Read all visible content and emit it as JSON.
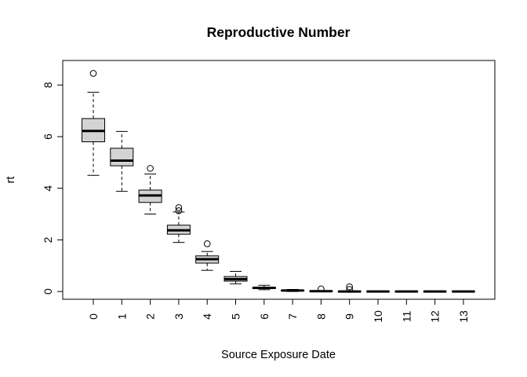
{
  "chart_data": {
    "type": "boxplot",
    "title": "Reproductive Number",
    "xlabel": "Source Exposure Date",
    "ylabel": "rt",
    "categories": [
      "0",
      "1",
      "2",
      "3",
      "4",
      "5",
      "6",
      "7",
      "8",
      "9",
      "10",
      "11",
      "12",
      "13"
    ],
    "ylim": [
      -0.3,
      8.95
    ],
    "y_ticks": [
      0,
      2,
      4,
      6,
      8
    ],
    "y_tick_labels": [
      "0",
      "2",
      "4",
      "6",
      "8"
    ],
    "grid": false,
    "box_fill": "#d3d3d3",
    "boxes": [
      {
        "category": "0",
        "whisker_low": 4.5,
        "q1": 5.8,
        "median": 6.22,
        "q3": 6.7,
        "whisker_high": 7.72,
        "outliers": [
          8.45
        ]
      },
      {
        "category": "1",
        "whisker_low": 3.88,
        "q1": 4.87,
        "median": 5.07,
        "q3": 5.55,
        "whisker_high": 6.2,
        "outliers": []
      },
      {
        "category": "2",
        "whisker_low": 3.0,
        "q1": 3.45,
        "median": 3.72,
        "q3": 3.93,
        "whisker_high": 4.55,
        "outliers": [
          4.77
        ]
      },
      {
        "category": "3",
        "whisker_low": 1.9,
        "q1": 2.22,
        "median": 2.37,
        "q3": 2.57,
        "whisker_high": 3.08,
        "outliers": [
          3.13,
          3.25
        ]
      },
      {
        "category": "4",
        "whisker_low": 0.82,
        "q1": 1.1,
        "median": 1.25,
        "q3": 1.38,
        "whisker_high": 1.55,
        "outliers": [
          1.85
        ]
      },
      {
        "category": "5",
        "whisker_low": 0.3,
        "q1": 0.4,
        "median": 0.48,
        "q3": 0.58,
        "whisker_high": 0.78,
        "outliers": []
      },
      {
        "category": "6",
        "whisker_low": 0.07,
        "q1": 0.11,
        "median": 0.14,
        "q3": 0.17,
        "whisker_high": 0.24,
        "outliers": []
      },
      {
        "category": "7",
        "whisker_low": 0.0,
        "q1": 0.02,
        "median": 0.04,
        "q3": 0.05,
        "whisker_high": 0.08,
        "outliers": []
      },
      {
        "category": "8",
        "whisker_low": 0.0,
        "q1": 0.0,
        "median": 0.01,
        "q3": 0.015,
        "whisker_high": 0.03,
        "outliers": [
          0.1
        ]
      },
      {
        "category": "9",
        "whisker_low": 0.0,
        "q1": 0.0,
        "median": 0.0,
        "q3": 0.01,
        "whisker_high": 0.02,
        "outliers": [
          0.08,
          0.18
        ]
      },
      {
        "category": "10",
        "whisker_low": 0.0,
        "q1": 0.0,
        "median": 0.0,
        "q3": 0.0,
        "whisker_high": 0.0,
        "outliers": []
      },
      {
        "category": "11",
        "whisker_low": 0.0,
        "q1": 0.0,
        "median": 0.0,
        "q3": 0.0,
        "whisker_high": 0.0,
        "outliers": []
      },
      {
        "category": "12",
        "whisker_low": 0.0,
        "q1": 0.0,
        "median": 0.0,
        "q3": 0.0,
        "whisker_high": 0.0,
        "outliers": []
      },
      {
        "category": "13",
        "whisker_low": 0.0,
        "q1": 0.0,
        "median": 0.0,
        "q3": 0.0,
        "whisker_high": 0.0,
        "outliers": []
      }
    ]
  }
}
